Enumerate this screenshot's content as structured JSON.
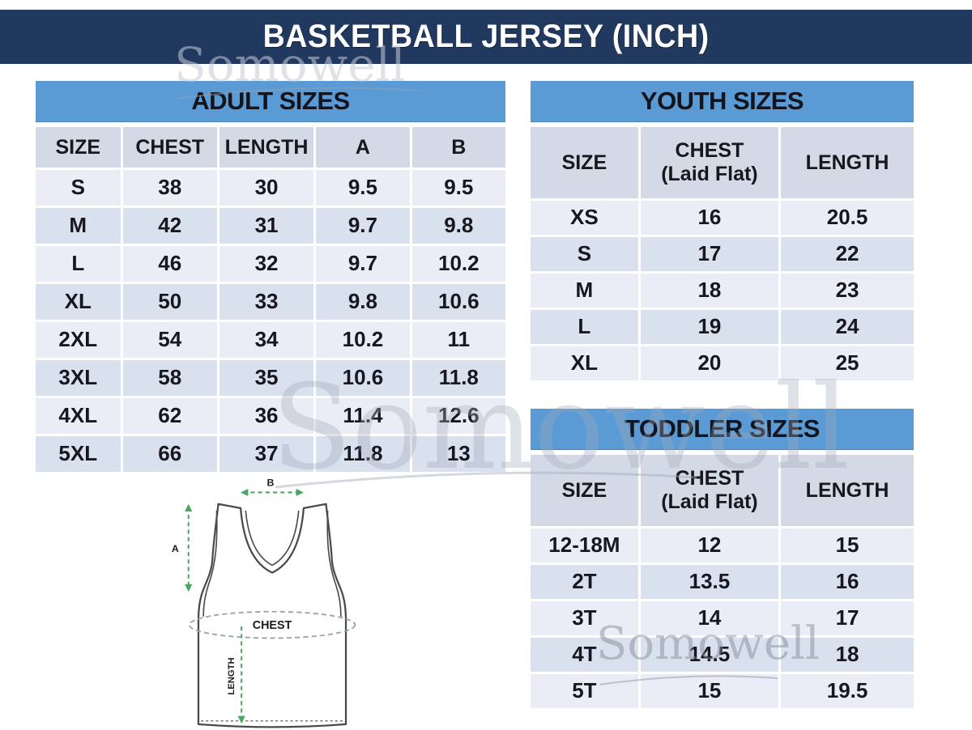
{
  "title": "BASKETBALL JERSEY (INCH)",
  "watermark": {
    "text": "Somowell"
  },
  "colors": {
    "navy": "#21395E",
    "header_blue": "#5B9BD5",
    "column_header": "#D3DAE6",
    "row_light": "#EAEDF5",
    "row_shaded": "#D9E0EE",
    "arrow_green": "#4AA564"
  },
  "tables": {
    "adult": {
      "title": "ADULT SIZES",
      "columns": [
        {
          "label": "SIZE"
        },
        {
          "label": "CHEST"
        },
        {
          "label": "LENGTH"
        },
        {
          "label": "A"
        },
        {
          "label": "B"
        }
      ],
      "rows": [
        [
          "S",
          "38",
          "30",
          "9.5",
          "9.5"
        ],
        [
          "M",
          "42",
          "31",
          "9.7",
          "9.8"
        ],
        [
          "L",
          "46",
          "32",
          "9.7",
          "10.2"
        ],
        [
          "XL",
          "50",
          "33",
          "9.8",
          "10.6"
        ],
        [
          "2XL",
          "54",
          "34",
          "10.2",
          "11"
        ],
        [
          "3XL",
          "58",
          "35",
          "10.6",
          "11.8"
        ],
        [
          "4XL",
          "62",
          "36",
          "11.4",
          "12.6"
        ],
        [
          "5XL",
          "66",
          "37",
          "11.8",
          "13"
        ]
      ]
    },
    "youth": {
      "title": "YOUTH SIZES",
      "columns": [
        {
          "label": "SIZE"
        },
        {
          "label": "CHEST",
          "sub": "(Laid Flat)"
        },
        {
          "label": "LENGTH"
        }
      ],
      "rows": [
        [
          "XS",
          "16",
          "20.5"
        ],
        [
          "S",
          "17",
          "22"
        ],
        [
          "M",
          "18",
          "23"
        ],
        [
          "L",
          "19",
          "24"
        ],
        [
          "XL",
          "20",
          "25"
        ]
      ]
    },
    "toddler": {
      "title": "TODDLER SIZES",
      "columns": [
        {
          "label": "SIZE"
        },
        {
          "label": "CHEST",
          "sub": "(Laid Flat)"
        },
        {
          "label": "LENGTH"
        }
      ],
      "rows": [
        [
          "12-18M",
          "12",
          "15"
        ],
        [
          "2T",
          "13.5",
          "16"
        ],
        [
          "3T",
          "14",
          "17"
        ],
        [
          "4T",
          "14.5",
          "18"
        ],
        [
          "5T",
          "15",
          "19.5"
        ]
      ]
    }
  },
  "diagram": {
    "label_a": "A",
    "label_b": "B",
    "label_chest": "CHEST",
    "label_length": "LENGTH"
  }
}
